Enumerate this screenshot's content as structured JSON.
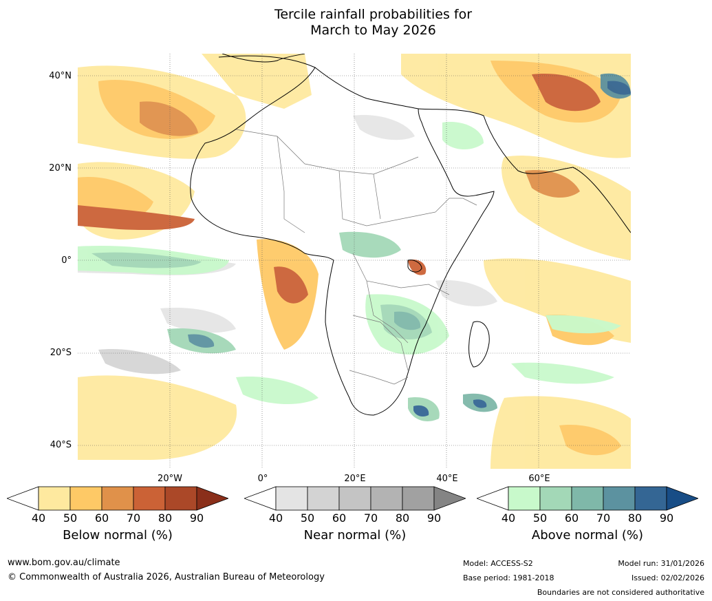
{
  "title": {
    "line1": "Tercile rainfall probabilities for",
    "line2": "March to May 2026"
  },
  "latitude_labels": [
    "40°N",
    "20°N",
    "0°",
    "20°S",
    "40°S"
  ],
  "longitude_labels": [
    "20°W",
    "0°",
    "20°E",
    "40°E",
    "60°E"
  ],
  "colorbars": [
    {
      "label": "Below normal (%)",
      "ticks": [
        "40",
        "50",
        "60",
        "70",
        "80",
        "90"
      ],
      "colors": [
        "#ffffff",
        "#fee99f",
        "#fec966",
        "#e0914a",
        "#cb6236",
        "#ab4828",
        "#8a2f1a"
      ]
    },
    {
      "label": "Near normal (%)",
      "ticks": [
        "40",
        "50",
        "60",
        "70",
        "80",
        "90"
      ],
      "colors": [
        "#ffffff",
        "#e4e4e4",
        "#d3d3d3",
        "#c4c4c4",
        "#b3b3b3",
        "#a1a1a1",
        "#848484"
      ]
    },
    {
      "label": "Above normal (%)",
      "ticks": [
        "40",
        "50",
        "60",
        "70",
        "80",
        "90"
      ],
      "colors": [
        "#ffffff",
        "#c8f9cb",
        "#a3d8b7",
        "#7fb8a9",
        "#5c92a0",
        "#346694",
        "#184d86"
      ]
    }
  ],
  "footer": {
    "url": "www.bom.gov.au/climate",
    "copyright": "© Commonwealth of Australia 2026, Australian Bureau of Meteorology",
    "model": "Model: ACCESS-S2",
    "base_period": "Base period: 1981-2018",
    "model_run": "Model run: 31/01/2026",
    "issued": "Issued: 02/02/2026",
    "disclaimer": "Boundaries are not considered authoritative"
  }
}
